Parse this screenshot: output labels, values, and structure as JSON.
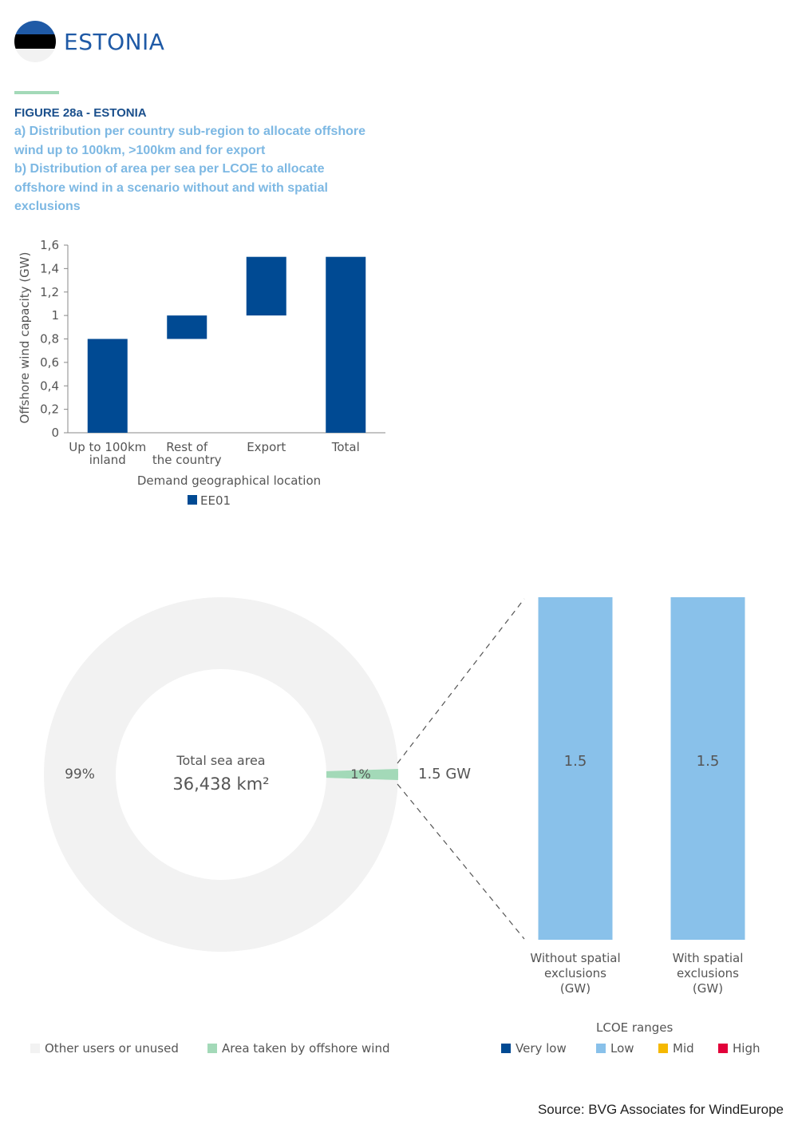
{
  "header": {
    "country": "ESTONIA",
    "flag_colors": [
      "#1f5aa6",
      "#000000",
      "#f2f2f2"
    ]
  },
  "figure": {
    "label": "FIGURE 28a - ESTONIA",
    "subtitle_lines": [
      "a) Distribution per country sub-region to allocate offshore",
      "wind up to 100km, >100km and for export",
      "b) Distribution of area per sea per LCOE to allocate",
      "offshore wind in a scenario without and with spatial",
      "exclusions"
    ]
  },
  "colors": {
    "dark_blue": "#004a93",
    "light_blue": "#89c1ea",
    "green": "#a3d9b8",
    "grey": "#f2f2f2",
    "mid": "#f5b800",
    "high": "#e2003a"
  },
  "chart_data": [
    {
      "type": "bar",
      "subtype": "waterfall",
      "categories": [
        [
          "Up to 100km",
          "inland"
        ],
        [
          "Rest of",
          "the country"
        ],
        [
          "Export"
        ],
        [
          "Total"
        ]
      ],
      "series": [
        {
          "name": "EE01",
          "bars": [
            {
              "bottom": 0,
              "top": 0.8
            },
            {
              "bottom": 0.8,
              "top": 1.0
            },
            {
              "bottom": 1.0,
              "top": 1.5
            },
            {
              "bottom": 0,
              "top": 1.5
            }
          ]
        }
      ],
      "ylabel": "Offshore wind capacity (GW)",
      "xlabel": "Demand geographical location",
      "ylim": [
        0,
        1.6
      ],
      "yticks": [
        "0",
        "0,2",
        "0,4",
        "0,6",
        "0,8",
        "1",
        "1,2",
        "1,4",
        "1,6"
      ],
      "legend": "bottom"
    },
    {
      "type": "pie",
      "subtype": "donut",
      "center_label": "Total sea area",
      "center_value": "36,438 km²",
      "slices": [
        {
          "name": "Other users or unused",
          "value": 99,
          "label": "99%"
        },
        {
          "name": "Area taken by offshore wind",
          "value": 1,
          "label": "1%"
        }
      ],
      "callout": "1.5 GW",
      "legend": "bottom-left"
    },
    {
      "type": "bar",
      "subtype": "stacked",
      "categories": [
        [
          "Without spatial",
          "exclusions",
          "(GW)"
        ],
        [
          "With spatial",
          "exclusions",
          "(GW)"
        ]
      ],
      "series": [
        {
          "name": "Very low",
          "values": [
            0,
            0
          ]
        },
        {
          "name": "Low",
          "values": [
            1.5,
            1.5
          ],
          "labels": [
            "1.5",
            "1.5"
          ]
        },
        {
          "name": "Mid",
          "values": [
            0,
            0
          ]
        },
        {
          "name": "High",
          "values": [
            0,
            0
          ]
        }
      ],
      "legend_title": "LCOE ranges",
      "legend": "bottom-right"
    }
  ],
  "source": "Source: BVG Associates for WindEurope"
}
